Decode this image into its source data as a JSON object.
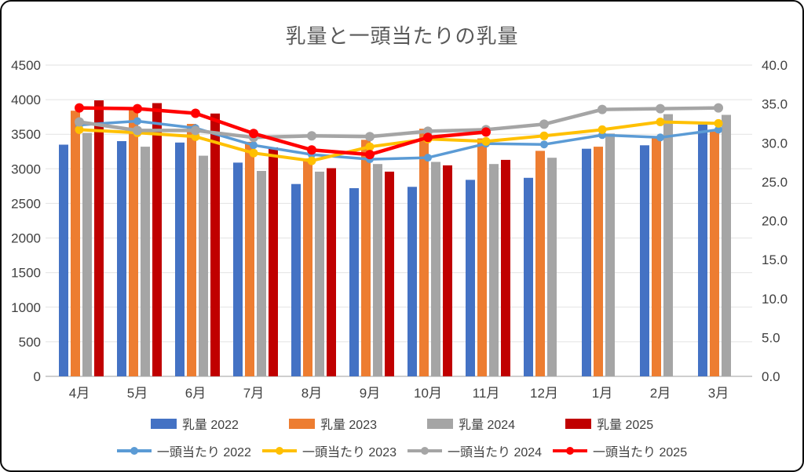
{
  "chart_data": {
    "type": "combo-bar-line",
    "title": "乳量と一頭当たりの乳量",
    "categories": [
      "4月",
      "5月",
      "6月",
      "7月",
      "8月",
      "9月",
      "10月",
      "11月",
      "12月",
      "1月",
      "2月",
      "3月"
    ],
    "left_axis": {
      "min": 0,
      "max": 4500,
      "step": 500,
      "tick_labels": [
        "0",
        "500",
        "1000",
        "1500",
        "2000",
        "2500",
        "3000",
        "3500",
        "4000",
        "4500"
      ]
    },
    "right_axis": {
      "min": 0.0,
      "max": 40.0,
      "step": 5.0,
      "tick_labels": [
        "0.0",
        "5.0",
        "10.0",
        "15.0",
        "20.0",
        "25.0",
        "30.0",
        "35.0",
        "40.0"
      ]
    },
    "grid": true,
    "legend_position": "bottom",
    "bar_series": [
      {
        "name": "乳量 2022",
        "color": "#4472C4",
        "values": [
          3350,
          3400,
          3380,
          3090,
          2780,
          2720,
          2740,
          2840,
          2870,
          3290,
          3340,
          3640
        ]
      },
      {
        "name": "乳量 2023",
        "color": "#ED7D31",
        "values": [
          3840,
          3850,
          3650,
          3390,
          3150,
          3420,
          3580,
          3440,
          3260,
          3320,
          3470,
          3540
        ]
      },
      {
        "name": "乳量 2024",
        "color": "#A5A5A5",
        "values": [
          3520,
          3320,
          3190,
          2970,
          2960,
          3070,
          3100,
          3070,
          3160,
          3510,
          3790,
          3780
        ]
      },
      {
        "name": "乳量 2025",
        "color": "#C00000",
        "values": [
          3990,
          3950,
          3800,
          3310,
          3010,
          2960,
          3050,
          3130,
          null,
          null,
          null,
          null
        ]
      }
    ],
    "line_series": [
      {
        "name": "一頭当たり 2022",
        "color": "#5B9BD5",
        "values": [
          32.3,
          32.8,
          31.9,
          29.7,
          28.5,
          27.9,
          28.1,
          29.9,
          29.8,
          31.0,
          30.7,
          31.7
        ]
      },
      {
        "name": "一頭当たり 2023",
        "color": "#FFC000",
        "values": [
          31.7,
          31.3,
          30.8,
          28.7,
          27.7,
          29.5,
          30.5,
          30.2,
          30.9,
          31.7,
          32.7,
          32.5
        ]
      },
      {
        "name": "一頭当たり 2024",
        "color": "#A5A5A5",
        "values": [
          32.7,
          31.6,
          31.6,
          30.7,
          30.9,
          30.8,
          31.5,
          31.7,
          32.4,
          34.3,
          34.4,
          34.5
        ]
      },
      {
        "name": "一頭当たり 2025",
        "color": "#FF0000",
        "values": [
          34.5,
          34.4,
          33.8,
          31.2,
          29.1,
          28.5,
          30.7,
          31.4,
          null,
          null,
          null,
          null
        ]
      }
    ],
    "colors": {
      "title_text": "#595959",
      "axis_text": "#404040",
      "gridline": "#E2E2E2",
      "axis_line": "#BFBFBF"
    }
  }
}
